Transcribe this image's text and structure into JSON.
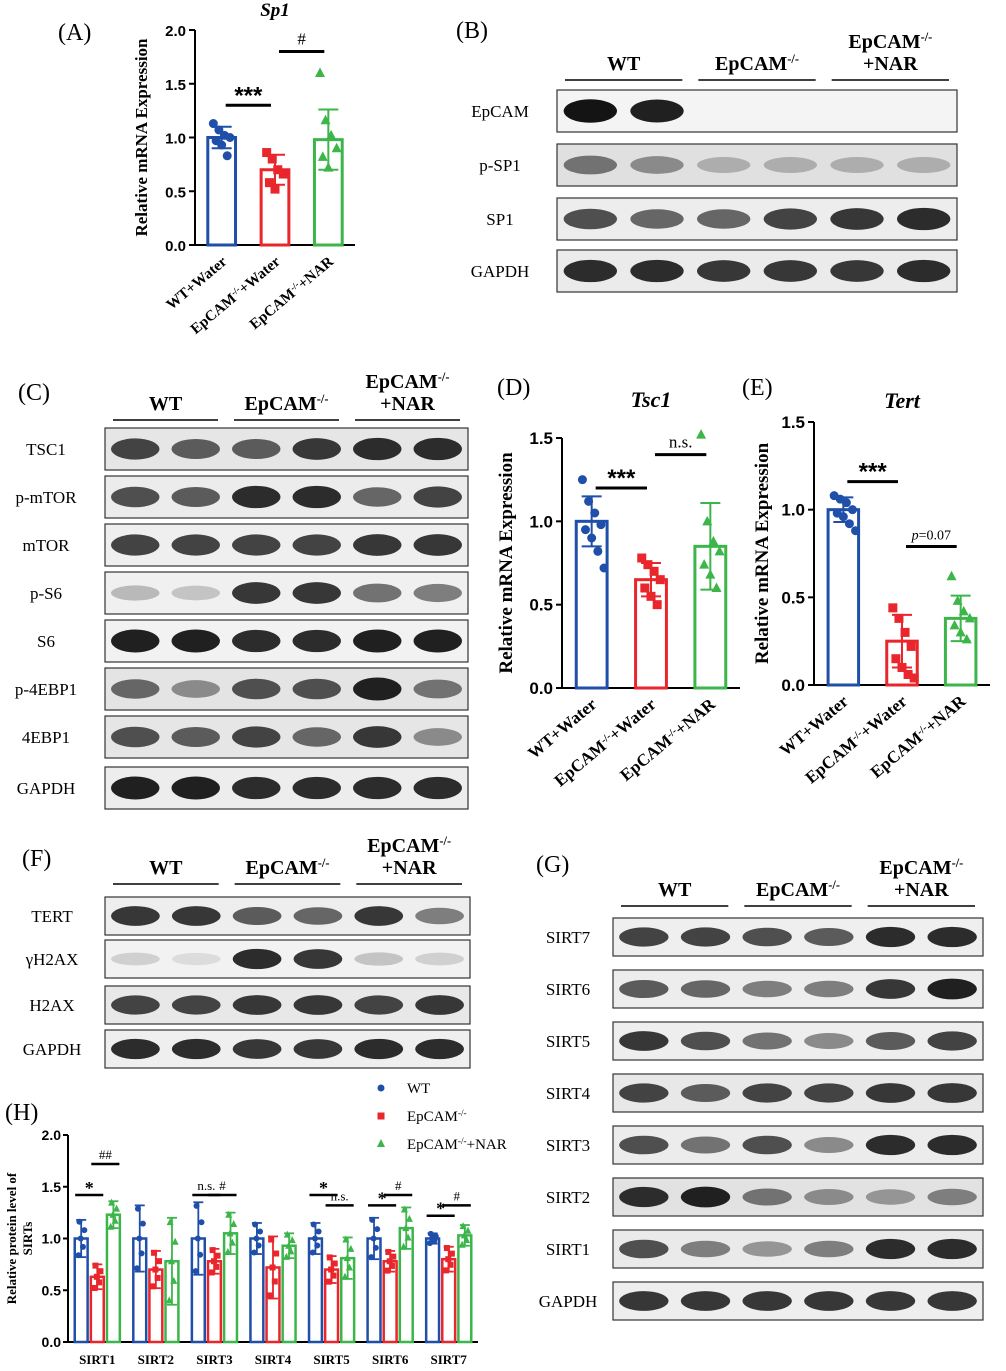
{
  "colors": {
    "wt": "#1f4fa8",
    "ko": "#e8262b",
    "nar": "#3cb54a"
  },
  "chart_data": [
    {
      "panel": "(A)",
      "type": "bar",
      "title": "Sp1",
      "ylabel": "Relative mRNA Expression",
      "categories": [
        "WT+Water",
        "EpCAM⁻/⁻+Water",
        "EpCAM⁻/⁻+NAR"
      ],
      "values": [
        1.0,
        0.7,
        0.98
      ],
      "errors": [
        0.1,
        0.14,
        0.28
      ],
      "points": [
        [
          1.13,
          1.07,
          1.02,
          1.0,
          0.97,
          0.93,
          0.83
        ],
        [
          0.86,
          0.8,
          0.7,
          0.66,
          0.58,
          0.52
        ],
        [
          1.6,
          1.16,
          1.02,
          0.9,
          0.82,
          0.72
        ]
      ],
      "ylim": [
        0,
        2.0
      ],
      "yticks": [
        "0.0",
        "0.5",
        "1.0",
        "1.5",
        "2.0"
      ],
      "yticks_values": [
        0,
        0.5,
        1.0,
        1.5,
        2.0
      ],
      "annotations": [
        {
          "label": "***",
          "from": 0,
          "to": 1,
          "y": 1.3
        },
        {
          "label": "#",
          "from": 1,
          "to": 2,
          "y": 1.8
        }
      ]
    },
    {
      "panel": "(D)",
      "type": "bar",
      "title": "Tsc1",
      "ylabel": "Relative mRNA Expression",
      "categories": [
        "WT+Water",
        "EpCAM⁻/⁻+Water",
        "EpCAM⁻/⁻+NAR"
      ],
      "values": [
        1.0,
        0.65,
        0.85
      ],
      "errors": [
        0.15,
        0.1,
        0.26
      ],
      "points": [
        [
          1.25,
          1.12,
          1.05,
          0.98,
          0.95,
          0.9,
          0.82,
          0.72
        ],
        [
          0.78,
          0.74,
          0.7,
          0.65,
          0.6,
          0.55,
          0.5
        ],
        [
          1.52,
          1.0,
          0.88,
          0.82,
          0.74,
          0.68,
          0.6
        ]
      ],
      "ylim": [
        0,
        1.5
      ],
      "yticks": [
        "0.0",
        "0.5",
        "1.0",
        "1.5"
      ],
      "yticks_values": [
        0,
        0.5,
        1.0,
        1.5
      ],
      "annotations": [
        {
          "label": "***",
          "from": 0,
          "to": 1,
          "y": 1.2
        },
        {
          "label": "n.s.",
          "from": 1,
          "to": 2,
          "y": 1.4
        }
      ]
    },
    {
      "panel": "(E)",
      "type": "bar",
      "title": "Tert",
      "ylabel": "Relative mRNA Expression",
      "categories": [
        "WT+Water",
        "EpCAM⁻/⁻+Water",
        "EpCAM⁻/⁻+NAR"
      ],
      "values": [
        1.0,
        0.25,
        0.38
      ],
      "errors": [
        0.07,
        0.15,
        0.13
      ],
      "points": [
        [
          1.08,
          1.06,
          1.04,
          1.0,
          0.98,
          0.96,
          0.92,
          0.88
        ],
        [
          0.44,
          0.38,
          0.3,
          0.22,
          0.15,
          0.1,
          0.06,
          0.04
        ],
        [
          0.62,
          0.48,
          0.42,
          0.38,
          0.34,
          0.3,
          0.26
        ]
      ],
      "ylim": [
        0,
        1.5
      ],
      "yticks": [
        "0.0",
        "0.5",
        "1.0",
        "1.5"
      ],
      "yticks_values": [
        0,
        0.5,
        1.0,
        1.5
      ],
      "annotations": [
        {
          "label": "***",
          "from": 0,
          "to": 1,
          "y": 1.16
        },
        {
          "label": "p=0.07",
          "from": 1,
          "to": 2,
          "y": 0.79
        }
      ]
    },
    {
      "panel": "(H)",
      "type": "bar",
      "ylabel": "Relative protein level of SIRTs",
      "categories": [
        "SIRT1",
        "SIRT2",
        "SIRT3",
        "SIRT4",
        "SIRT5",
        "SIRT6",
        "SIRT7"
      ],
      "legend": [
        "WT",
        "EpCAM⁻/⁻",
        "EpCAM⁻/⁻+NAR"
      ],
      "legend_position": "top-right",
      "series": [
        {
          "values": [
            1.0,
            1.0,
            1.0,
            1.0,
            1.0,
            1.0,
            1.0
          ],
          "errors": [
            0.18,
            0.32,
            0.35,
            0.15,
            0.15,
            0.2,
            0.05
          ]
        },
        {
          "values": [
            0.63,
            0.7,
            0.78,
            0.72,
            0.7,
            0.78,
            0.8
          ],
          "errors": [
            0.12,
            0.18,
            0.12,
            0.3,
            0.13,
            0.1,
            0.12
          ]
        },
        {
          "values": [
            1.23,
            0.78,
            1.05,
            0.93,
            0.81,
            1.1,
            1.03
          ],
          "errors": [
            0.13,
            0.42,
            0.2,
            0.12,
            0.2,
            0.2,
            0.1
          ]
        }
      ],
      "ylim": [
        0,
        2.0
      ],
      "yticks": [
        "0.0",
        "0.5",
        "1.0",
        "1.5",
        "2.0"
      ],
      "yticks_values": [
        0,
        0.5,
        1.0,
        1.5,
        2.0
      ],
      "annotations": [
        {
          "label": "*",
          "cat": 0,
          "from": 0,
          "to": 1,
          "y": 1.42
        },
        {
          "label": "##",
          "cat": 0,
          "from": 1,
          "to": 2,
          "y": 1.72
        },
        {
          "label": "n.s.",
          "cat": 2,
          "from": 0,
          "to": 1,
          "y": 1.42
        },
        {
          "label": "#",
          "cat": 2,
          "from": 1,
          "to": 2,
          "y": 1.42
        },
        {
          "label": "*",
          "cat": 4,
          "from": 0,
          "to": 1,
          "y": 1.42
        },
        {
          "label": "n.s.",
          "cat": 4,
          "from": 1,
          "to": 2,
          "y": 1.32
        },
        {
          "label": "*",
          "cat": 5,
          "from": 0,
          "to": 1,
          "y": 1.32
        },
        {
          "label": "#",
          "cat": 5,
          "from": 1,
          "to": 2,
          "y": 1.42
        },
        {
          "label": "*",
          "cat": 6,
          "from": 0,
          "to": 1,
          "y": 1.22
        },
        {
          "label": "#",
          "cat": 6,
          "from": 1,
          "to": 2,
          "y": 1.32
        }
      ]
    }
  ],
  "blots": [
    {
      "panel": "(B)",
      "groups": [
        "WT",
        "EpCAM⁻/⁻",
        "EpCAM⁻/⁻|+NAR"
      ],
      "rows": [
        "EpCAM",
        "p-SP1",
        "SP1",
        "GAPDH"
      ]
    },
    {
      "panel": "(C)",
      "groups": [
        "WT",
        "EpCAM⁻/⁻",
        "EpCAM⁻/⁻|+NAR"
      ],
      "rows": [
        "TSC1",
        "p-mTOR",
        "mTOR",
        "p-S6",
        "S6",
        "p-4EBP1",
        "4EBP1",
        "GAPDH"
      ]
    },
    {
      "panel": "(F)",
      "groups": [
        "WT",
        "EpCAM⁻/⁻",
        "EpCAM⁻/⁻|+NAR"
      ],
      "rows": [
        "TERT",
        "γH2AX",
        "H2AX",
        "GAPDH"
      ]
    },
    {
      "panel": "(G)",
      "groups": [
        "WT",
        "EpCAM⁻/⁻",
        "EpCAM⁻/⁻|+NAR"
      ],
      "rows": [
        "SIRT7",
        "SIRT6",
        "SIRT5",
        "SIRT4",
        "SIRT3",
        "SIRT2",
        "SIRT1",
        "GAPDH"
      ]
    }
  ]
}
